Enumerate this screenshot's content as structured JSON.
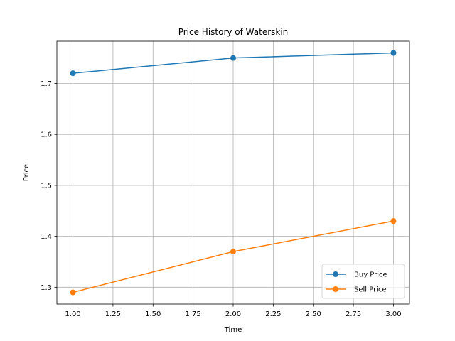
{
  "chart_data": {
    "type": "line",
    "title": "Price History of Waterskin",
    "xlabel": "Time",
    "ylabel": "Price",
    "x": [
      1.0,
      2.0,
      3.0
    ],
    "xlim": [
      0.9,
      3.1
    ],
    "ylim": [
      1.267,
      1.783
    ],
    "x_ticks": [
      1.0,
      1.25,
      1.5,
      1.75,
      2.0,
      2.25,
      2.5,
      2.75,
      3.0
    ],
    "x_tick_labels": [
      "1.00",
      "1.25",
      "1.50",
      "1.75",
      "2.00",
      "2.25",
      "2.50",
      "2.75",
      "3.00"
    ],
    "y_ticks": [
      1.3,
      1.4,
      1.5,
      1.6,
      1.7
    ],
    "y_tick_labels": [
      "1.3",
      "1.4",
      "1.5",
      "1.6",
      "1.7"
    ],
    "grid": true,
    "legend_position": "lower right",
    "series": [
      {
        "name": "Buy Price",
        "values": [
          1.72,
          1.75,
          1.76
        ],
        "color": "#1f77b4",
        "marker": "circle"
      },
      {
        "name": "Sell Price",
        "values": [
          1.29,
          1.37,
          1.43
        ],
        "color": "#ff7f0e",
        "marker": "circle"
      }
    ]
  }
}
